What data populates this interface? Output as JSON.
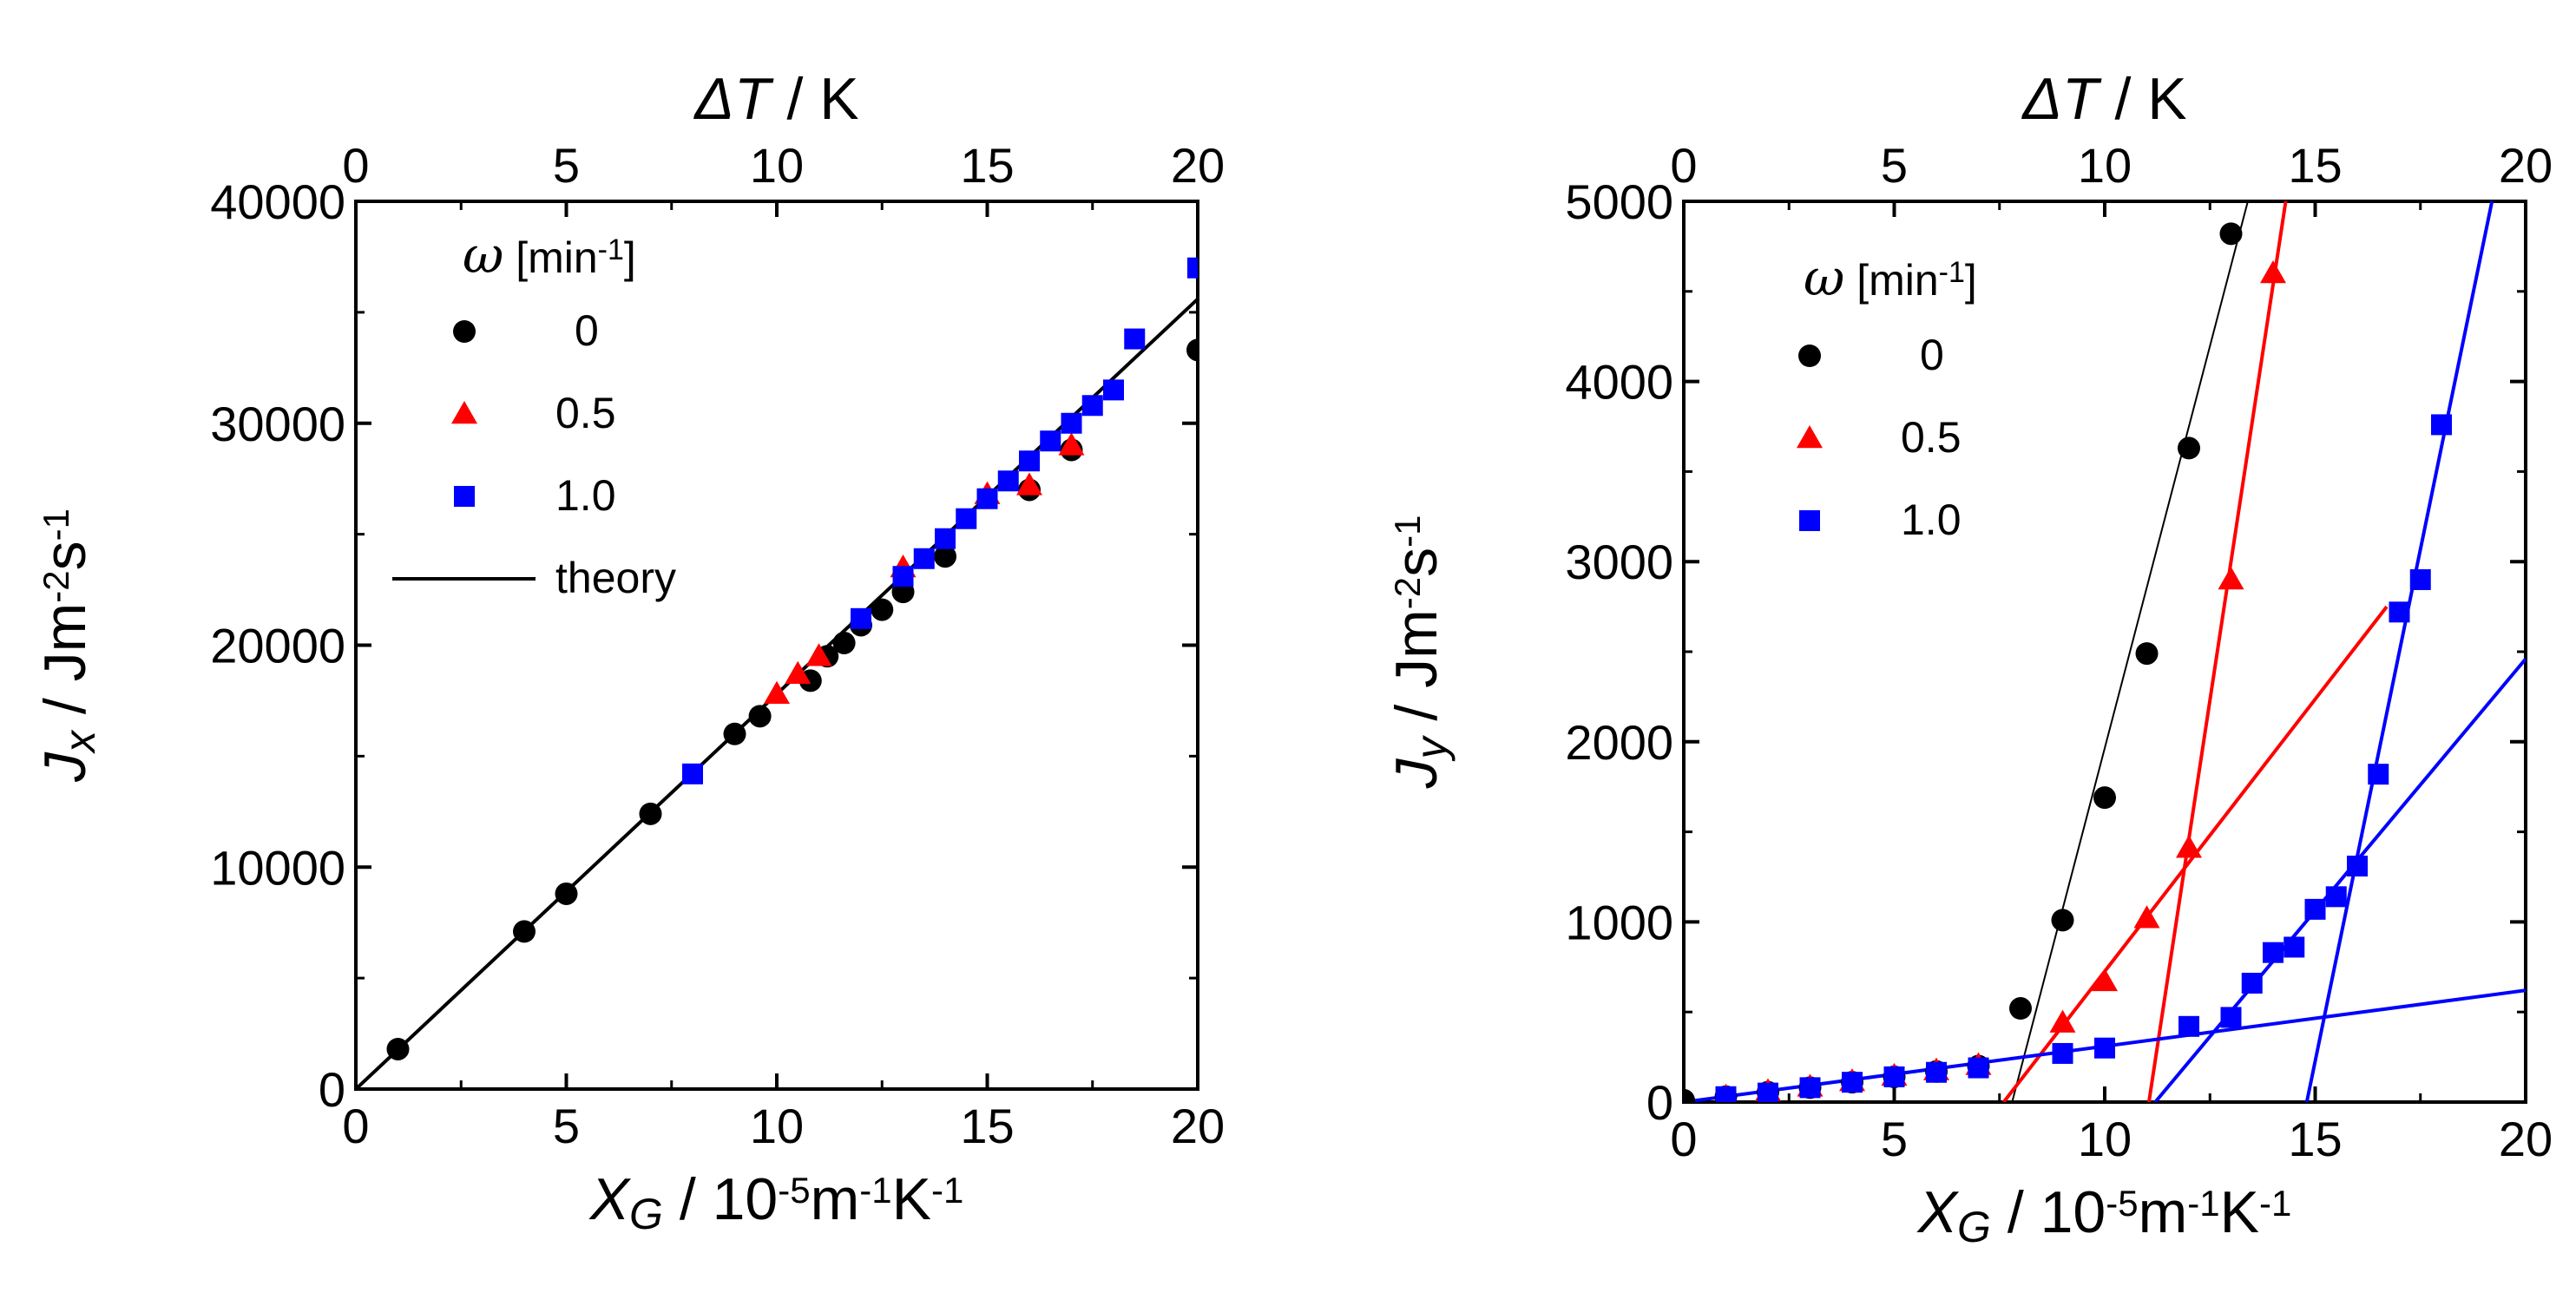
{
  "chart_data": [
    {
      "id": "left",
      "type": "scatter",
      "x": {
        "min": 0,
        "max": 20,
        "ticks": [
          "0",
          "5",
          "10",
          "15",
          "20"
        ],
        "tick_values": [
          0,
          5,
          10,
          15,
          20
        ]
      },
      "x_top": {
        "min": 0,
        "max": 20,
        "ticks": [
          "0",
          "5",
          "10",
          "15",
          "20"
        ],
        "tick_values": [
          0,
          5,
          10,
          15,
          20
        ]
      },
      "y": {
        "min": 0,
        "max": 40000,
        "ticks": [
          "0",
          "10000",
          "20000",
          "30000",
          "40000"
        ],
        "tick_values": [
          0,
          10000,
          20000,
          30000,
          40000
        ]
      },
      "xlabel": {
        "sym": "X",
        "sub": "G",
        "mid": " / 10",
        "sup1": "-5",
        "unit1": "m",
        "sup2": "-1",
        "unit2": "K",
        "sup3": "-1"
      },
      "toplabel": {
        "sym": "ΔT",
        "rest": " / K"
      },
      "ylabel": {
        "sym": "J",
        "sub": "x",
        "mid": " / Jm",
        "sup1": "-2",
        "unit1": "s",
        "sup2": "-1"
      },
      "legend": {
        "title": {
          "sym": "ω",
          "pre": " [min",
          "sup": "-1",
          "post": "]"
        },
        "entries": [
          "0",
          "0.5",
          "1.0",
          "theory"
        ]
      },
      "series": [
        {
          "name": "0",
          "marker": "circle",
          "color": "#000000",
          "points": [
            [
              1,
              1800
            ],
            [
              4,
              7100
            ],
            [
              5,
              8800
            ],
            [
              7,
              12400
            ],
            [
              9,
              16000
            ],
            [
              9.6,
              16800
            ],
            [
              10.8,
              18400
            ],
            [
              11.2,
              19500
            ],
            [
              11.6,
              20100
            ],
            [
              12,
              20900
            ],
            [
              12.5,
              21600
            ],
            [
              13,
              22400
            ],
            [
              14,
              24000
            ],
            [
              16,
              27000
            ],
            [
              17,
              28800
            ],
            [
              20,
              33300
            ]
          ]
        },
        {
          "name": "0.5",
          "marker": "triangle",
          "color": "#ff0000",
          "points": [
            [
              10,
              17800
            ],
            [
              10.5,
              18700
            ],
            [
              11,
              19500
            ],
            [
              13,
              23500
            ],
            [
              15,
              26800
            ],
            [
              16,
              27200
            ],
            [
              17,
              29000
            ]
          ]
        },
        {
          "name": "1.0",
          "marker": "square",
          "color": "#0000ff",
          "points": [
            [
              8,
              14200
            ],
            [
              12,
              21200
            ],
            [
              13,
              23100
            ],
            [
              13.5,
              23900
            ],
            [
              14,
              24800
            ],
            [
              14.5,
              25700
            ],
            [
              15,
              26600
            ],
            [
              15.5,
              27400
            ],
            [
              16,
              28300
            ],
            [
              16.5,
              29200
            ],
            [
              17,
              30000
            ],
            [
              17.5,
              30800
            ],
            [
              18,
              31500
            ],
            [
              18.5,
              33800
            ],
            [
              20,
              37000
            ]
          ]
        }
      ],
      "lines": [
        {
          "name": "theory",
          "color": "#000000",
          "points": [
            [
              0,
              0
            ],
            [
              20,
              35600
            ]
          ]
        }
      ]
    },
    {
      "id": "right",
      "type": "scatter",
      "x": {
        "min": 0,
        "max": 20,
        "ticks": [
          "0",
          "5",
          "10",
          "15",
          "20"
        ],
        "tick_values": [
          0,
          5,
          10,
          15,
          20
        ]
      },
      "x_top": {
        "min": 0,
        "max": 20,
        "ticks": [
          "0",
          "5",
          "10",
          "15",
          "20"
        ],
        "tick_values": [
          0,
          5,
          10,
          15,
          20
        ]
      },
      "y": {
        "min": 0,
        "max": 5000,
        "ticks": [
          "0",
          "1000",
          "2000",
          "3000",
          "4000",
          "5000"
        ],
        "tick_values": [
          0,
          1000,
          2000,
          3000,
          4000,
          5000
        ]
      },
      "xlabel": {
        "sym": "X",
        "sub": "G",
        "mid": " / 10",
        "sup1": "-5",
        "unit1": "m",
        "sup2": "-1",
        "unit2": "K",
        "sup3": "-1"
      },
      "toplabel": {
        "sym": "ΔT",
        "rest": " / K"
      },
      "ylabel": {
        "sym": "J",
        "sub": "y",
        "mid": " / Jm",
        "sup1": "-2",
        "unit1": "s",
        "sup2": "-1"
      },
      "legend": {
        "title": {
          "sym": "ω",
          "pre": " [min",
          "sup": "-1",
          "post": "]"
        },
        "entries": [
          "0",
          "0.5",
          "1.0"
        ]
      },
      "series": [
        {
          "name": "0",
          "marker": "circle",
          "color": "#000000",
          "points": [
            [
              0,
              10
            ],
            [
              1,
              30
            ],
            [
              2,
              55
            ],
            [
              3,
              80
            ],
            [
              4,
              110
            ],
            [
              5,
              140
            ],
            [
              6,
              170
            ],
            [
              7,
              200
            ],
            [
              8,
              520
            ],
            [
              9,
              1010
            ],
            [
              10,
              1690
            ],
            [
              11,
              2490
            ],
            [
              12,
              3630
            ],
            [
              13,
              4820
            ]
          ]
        },
        {
          "name": "0.5",
          "marker": "triangle",
          "color": "#ff0000",
          "points": [
            [
              1,
              30
            ],
            [
              2,
              60
            ],
            [
              3,
              85
            ],
            [
              4,
              115
            ],
            [
              5,
              145
            ],
            [
              6,
              175
            ],
            [
              7,
              205
            ],
            [
              9,
              440
            ],
            [
              10,
              670
            ],
            [
              11,
              1020
            ],
            [
              12,
              1410
            ],
            [
              13,
              2900
            ],
            [
              14,
              4600
            ]
          ]
        },
        {
          "name": "1.0",
          "marker": "square",
          "color": "#0000ff",
          "points": [
            [
              1,
              30
            ],
            [
              2,
              50
            ],
            [
              3,
              80
            ],
            [
              4,
              110
            ],
            [
              5,
              140
            ],
            [
              6,
              165
            ],
            [
              7,
              190
            ],
            [
              9,
              270
            ],
            [
              10,
              300
            ],
            [
              12,
              420
            ],
            [
              13,
              470
            ],
            [
              13.5,
              660
            ],
            [
              14,
              830
            ],
            [
              14.5,
              860
            ],
            [
              15,
              1070
            ],
            [
              15.5,
              1140
            ],
            [
              16,
              1310
            ],
            [
              16.5,
              1820
            ],
            [
              17,
              2720
            ],
            [
              17.5,
              2900
            ],
            [
              18,
              3760
            ]
          ]
        }
      ],
      "lines": [
        {
          "color": "#000000",
          "width": 2,
          "points": [
            [
              7.8,
              0
            ],
            [
              13.4,
              5000
            ]
          ]
        },
        {
          "color": "#ff0000",
          "width": 4,
          "points": [
            [
              7.6,
              0
            ],
            [
              16.7,
              2750
            ]
          ]
        },
        {
          "color": "#ff0000",
          "width": 4,
          "points": [
            [
              11.05,
              0
            ],
            [
              14.3,
              5000
            ]
          ]
        },
        {
          "color": "#0000ff",
          "width": 4,
          "points": [
            [
              0,
              0
            ],
            [
              20,
              620
            ]
          ]
        },
        {
          "color": "#0000ff",
          "width": 4,
          "points": [
            [
              11.2,
              0
            ],
            [
              20,
              2460
            ]
          ]
        },
        {
          "color": "#0000ff",
          "width": 4,
          "points": [
            [
              14.8,
              0
            ],
            [
              19.2,
              5000
            ]
          ]
        }
      ]
    }
  ]
}
